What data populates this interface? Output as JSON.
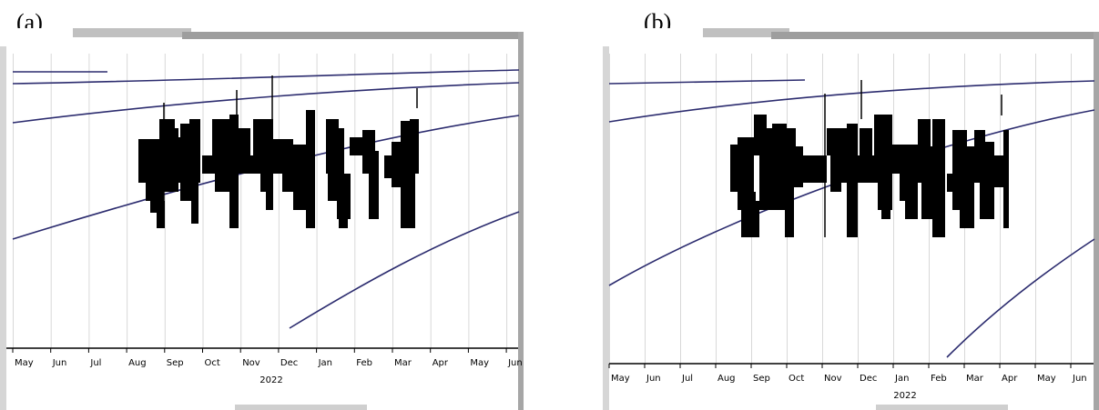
{
  "panels": [
    {
      "label": "(a)"
    },
    {
      "label": "(b)"
    }
  ],
  "chart_data": [
    {
      "type": "bar",
      "panel": "(a)",
      "title": "",
      "x_ticks": [
        "May",
        "Jun",
        "Jul",
        "Aug",
        "Sep",
        "Oct",
        "Nov",
        "Dec",
        "Jan",
        "Feb",
        "Mar",
        "Apr",
        "May",
        "Jun"
      ],
      "year_label": "2022",
      "grid": true,
      "colors": {
        "curve": "#2b2b6e",
        "marks": "#000000",
        "grid": "#d8d8d8",
        "frame": "#b5b5b5"
      }
    },
    {
      "type": "bar",
      "panel": "(b)",
      "title": "",
      "x_ticks": [
        "May",
        "Jun",
        "Jul",
        "Aug",
        "Sep",
        "Oct",
        "Nov",
        "Dec",
        "Jan",
        "Feb",
        "Mar",
        "Apr",
        "May",
        "Jun"
      ],
      "year_label": "2022",
      "grid": true,
      "colors": {
        "curve": "#2b2b6e",
        "marks": "#000000",
        "grid": "#d8d8d8",
        "frame": "#b5b5b5"
      }
    }
  ]
}
